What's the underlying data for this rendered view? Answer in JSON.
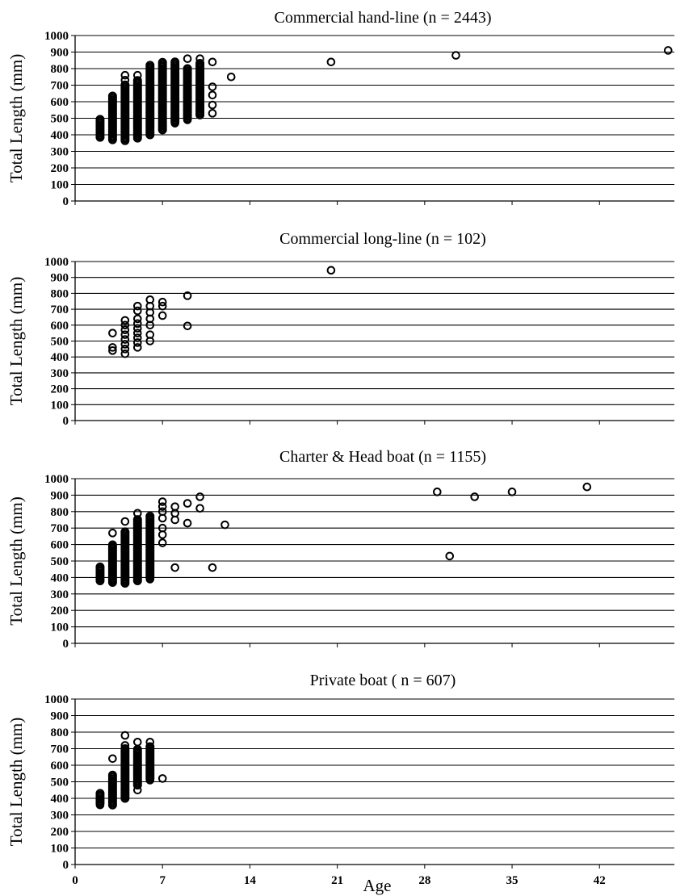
{
  "xlabel": "Age",
  "chart_data": [
    {
      "type": "scatter",
      "title": "Commercial hand-line (n = 2443)",
      "ylabel": "Total Length (mm)",
      "xlabel": "",
      "xlim": [
        0,
        48
      ],
      "ylim": [
        0,
        1000
      ],
      "yticks": [
        0,
        100,
        200,
        300,
        400,
        500,
        600,
        700,
        800,
        900,
        1000
      ],
      "xticks": [],
      "grid": true,
      "series": [
        {
          "columns": [
            {
              "x": 2,
              "y": [
                385,
                500
              ]
            },
            {
              "x": 3,
              "y": [
                370,
                640
              ]
            },
            {
              "x": 4,
              "y": [
                365,
                710
              ]
            },
            {
              "x": 5,
              "y": [
                380,
                730
              ]
            },
            {
              "x": 6,
              "y": [
                400,
                820
              ]
            },
            {
              "x": 7,
              "y": [
                430,
                840
              ]
            },
            {
              "x": 8,
              "y": [
                480,
                840
              ]
            },
            {
              "x": 9,
              "y": [
                500,
                800
              ]
            },
            {
              "x": 10,
              "y": [
                520,
                840
              ]
            }
          ],
          "points": [
            {
              "x": 4,
              "y": 730
            },
            {
              "x": 4,
              "y": 760
            },
            {
              "x": 5,
              "y": 760
            },
            {
              "x": 8,
              "y": 470
            },
            {
              "x": 9,
              "y": 490
            },
            {
              "x": 9,
              "y": 550
            },
            {
              "x": 9,
              "y": 600
            },
            {
              "x": 9,
              "y": 860
            },
            {
              "x": 10,
              "y": 860
            },
            {
              "x": 11,
              "y": 840
            },
            {
              "x": 11,
              "y": 690
            },
            {
              "x": 11,
              "y": 640
            },
            {
              "x": 11,
              "y": 580
            },
            {
              "x": 11,
              "y": 530
            },
            {
              "x": 12.5,
              "y": 750
            },
            {
              "x": 20.5,
              "y": 840
            },
            {
              "x": 30.5,
              "y": 880
            },
            {
              "x": 47.5,
              "y": 910
            }
          ]
        }
      ]
    },
    {
      "type": "scatter",
      "title": "Commercial long-line (n = 102)",
      "ylabel": "Total Length (mm)",
      "xlabel": "",
      "xlim": [
        0,
        48
      ],
      "ylim": [
        0,
        1000
      ],
      "yticks": [
        0,
        100,
        200,
        300,
        400,
        500,
        600,
        700,
        800,
        900,
        1000
      ],
      "xticks": [],
      "grid": true,
      "series": [
        {
          "columns": [],
          "points": [
            {
              "x": 3,
              "y": 440
            },
            {
              "x": 3,
              "y": 460
            },
            {
              "x": 3,
              "y": 550
            },
            {
              "x": 4,
              "y": 420
            },
            {
              "x": 4,
              "y": 450
            },
            {
              "x": 4,
              "y": 480
            },
            {
              "x": 4,
              "y": 510
            },
            {
              "x": 4,
              "y": 540
            },
            {
              "x": 4,
              "y": 570
            },
            {
              "x": 4,
              "y": 600
            },
            {
              "x": 4,
              "y": 630
            },
            {
              "x": 5,
              "y": 460
            },
            {
              "x": 5,
              "y": 490
            },
            {
              "x": 5,
              "y": 520
            },
            {
              "x": 5,
              "y": 550
            },
            {
              "x": 5,
              "y": 580
            },
            {
              "x": 5,
              "y": 610
            },
            {
              "x": 5,
              "y": 640
            },
            {
              "x": 5,
              "y": 690
            },
            {
              "x": 5,
              "y": 720
            },
            {
              "x": 6,
              "y": 500
            },
            {
              "x": 6,
              "y": 540
            },
            {
              "x": 6,
              "y": 600
            },
            {
              "x": 6,
              "y": 640
            },
            {
              "x": 6,
              "y": 680
            },
            {
              "x": 6,
              "y": 720
            },
            {
              "x": 6,
              "y": 760
            },
            {
              "x": 7,
              "y": 660
            },
            {
              "x": 7,
              "y": 720
            },
            {
              "x": 7,
              "y": 745
            },
            {
              "x": 9,
              "y": 595
            },
            {
              "x": 9,
              "y": 785
            },
            {
              "x": 20.5,
              "y": 945
            }
          ]
        }
      ]
    },
    {
      "type": "scatter",
      "title": "Charter & Head boat (n = 1155)",
      "ylabel": "Total Length (mm)",
      "xlabel": "",
      "xlim": [
        0,
        48
      ],
      "ylim": [
        0,
        1000
      ],
      "yticks": [
        0,
        100,
        200,
        300,
        400,
        500,
        600,
        700,
        800,
        900,
        1000
      ],
      "xticks": [],
      "grid": true,
      "series": [
        {
          "columns": [
            {
              "x": 2,
              "y": [
                380,
                470
              ]
            },
            {
              "x": 3,
              "y": [
                370,
                600
              ]
            },
            {
              "x": 4,
              "y": [
                365,
                680
              ]
            },
            {
              "x": 5,
              "y": [
                380,
                760
              ]
            },
            {
              "x": 6,
              "y": [
                400,
                780
              ]
            }
          ],
          "points": [
            {
              "x": 3,
              "y": 670
            },
            {
              "x": 4,
              "y": 740
            },
            {
              "x": 5,
              "y": 790
            },
            {
              "x": 6,
              "y": 400
            },
            {
              "x": 6,
              "y": 390
            },
            {
              "x": 7,
              "y": 610
            },
            {
              "x": 7,
              "y": 660
            },
            {
              "x": 7,
              "y": 700
            },
            {
              "x": 7,
              "y": 760
            },
            {
              "x": 7,
              "y": 800
            },
            {
              "x": 7,
              "y": 830
            },
            {
              "x": 7,
              "y": 860
            },
            {
              "x": 8,
              "y": 460
            },
            {
              "x": 8,
              "y": 750
            },
            {
              "x": 8,
              "y": 790
            },
            {
              "x": 8,
              "y": 830
            },
            {
              "x": 9,
              "y": 730
            },
            {
              "x": 9,
              "y": 850
            },
            {
              "x": 10,
              "y": 820
            },
            {
              "x": 10,
              "y": 890
            },
            {
              "x": 11,
              "y": 460
            },
            {
              "x": 12,
              "y": 720
            },
            {
              "x": 29,
              "y": 920
            },
            {
              "x": 30,
              "y": 530
            },
            {
              "x": 32,
              "y": 890
            },
            {
              "x": 35,
              "y": 920
            },
            {
              "x": 41,
              "y": 950
            }
          ]
        }
      ]
    },
    {
      "type": "scatter",
      "title": "Private boat ( n = 607)",
      "ylabel": "Total Length (mm)",
      "xlabel": "Age",
      "xlim": [
        0,
        48
      ],
      "ylim": [
        0,
        1000
      ],
      "yticks": [
        0,
        100,
        200,
        300,
        400,
        500,
        600,
        700,
        800,
        900,
        1000
      ],
      "xticks": [
        0,
        7,
        14,
        21,
        28,
        35,
        42
      ],
      "grid": true,
      "series": [
        {
          "columns": [
            {
              "x": 2,
              "y": [
                370,
                430
              ]
            },
            {
              "x": 3,
              "y": [
                360,
                550
              ]
            },
            {
              "x": 4,
              "y": [
                400,
                700
              ]
            },
            {
              "x": 5,
              "y": [
                480,
                700
              ]
            },
            {
              "x": 6,
              "y": [
                520,
                720
              ]
            }
          ],
          "points": [
            {
              "x": 2,
              "y": 360
            },
            {
              "x": 3,
              "y": 640
            },
            {
              "x": 4,
              "y": 780
            },
            {
              "x": 4,
              "y": 720
            },
            {
              "x": 5,
              "y": 450
            },
            {
              "x": 5,
              "y": 740
            },
            {
              "x": 6,
              "y": 510
            },
            {
              "x": 6,
              "y": 600
            },
            {
              "x": 6,
              "y": 660
            },
            {
              "x": 6,
              "y": 740
            },
            {
              "x": 7,
              "y": 520
            }
          ]
        }
      ]
    }
  ]
}
